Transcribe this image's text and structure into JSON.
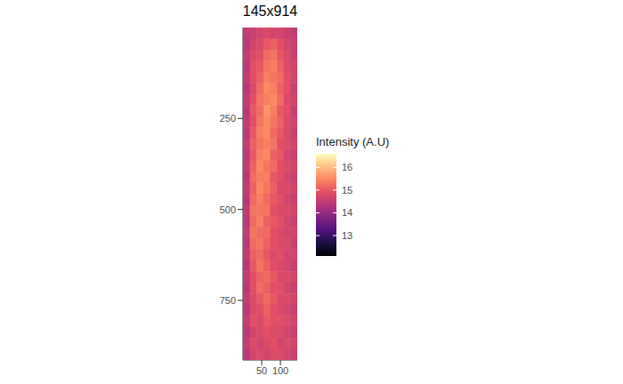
{
  "chart_data": {
    "type": "heatmap",
    "title": "145x914",
    "xlim": [
      0,
      145
    ],
    "xticks": [
      50,
      100
    ],
    "ylim": [
      0,
      914
    ],
    "yticks": [
      250,
      500,
      750
    ],
    "x_edges": [
      0,
      18.1,
      36.3,
      54.4,
      72.5,
      90.6,
      108.8,
      126.9,
      145
    ],
    "y_edges": [
      0,
      30.5,
      60.9,
      91.4,
      121.9,
      152.3,
      182.8,
      213.3,
      243.7,
      274.2,
      304.7,
      335.1,
      365.6,
      396.1,
      426.5,
      457,
      487.5,
      517.9,
      548.4,
      578.9,
      609.3,
      639.8,
      670.3,
      700.7,
      731.2,
      761.7,
      792.1,
      822.6,
      853.1,
      883.5,
      914
    ],
    "cells": [
      [
        14.5,
        14.6,
        14.7,
        14.8,
        14.7,
        14.7,
        14.6,
        14.5
      ],
      [
        14.4,
        14.7,
        14.8,
        15.0,
        15.1,
        14.9,
        14.7,
        14.6
      ],
      [
        14.5,
        14.8,
        14.9,
        15.2,
        15.3,
        15.0,
        14.8,
        14.6
      ],
      [
        14.4,
        14.9,
        15.0,
        15.3,
        15.4,
        15.1,
        14.8,
        14.7
      ],
      [
        14.5,
        14.9,
        15.1,
        15.4,
        15.3,
        15.2,
        14.9,
        14.7
      ],
      [
        14.4,
        14.8,
        15.2,
        15.5,
        15.4,
        15.1,
        14.9,
        14.6
      ],
      [
        14.5,
        14.9,
        15.3,
        15.4,
        15.5,
        15.2,
        14.8,
        14.7
      ],
      [
        14.4,
        15.0,
        15.2,
        15.6,
        15.4,
        15.0,
        14.9,
        14.6
      ],
      [
        14.5,
        14.9,
        15.3,
        15.5,
        15.3,
        15.1,
        14.8,
        14.7
      ],
      [
        14.4,
        15.0,
        15.4,
        15.5,
        15.2,
        15.0,
        14.8,
        14.6
      ],
      [
        14.5,
        15.1,
        15.3,
        15.4,
        15.3,
        14.9,
        14.8,
        14.7
      ],
      [
        14.4,
        15.0,
        15.4,
        15.5,
        15.1,
        15.0,
        14.7,
        14.6
      ],
      [
        14.5,
        15.1,
        15.5,
        15.3,
        15.2,
        14.9,
        14.8,
        14.7
      ],
      [
        14.4,
        15.2,
        15.4,
        15.4,
        15.0,
        14.9,
        14.7,
        14.6
      ],
      [
        14.5,
        15.1,
        15.5,
        15.3,
        15.1,
        14.8,
        14.8,
        14.7
      ],
      [
        14.4,
        15.2,
        15.4,
        15.2,
        15.0,
        14.9,
        14.7,
        14.6
      ],
      [
        14.5,
        15.3,
        15.3,
        15.3,
        14.9,
        14.8,
        14.8,
        14.7
      ],
      [
        14.4,
        15.2,
        15.4,
        15.1,
        15.0,
        14.9,
        14.7,
        14.6
      ],
      [
        14.5,
        15.3,
        15.2,
        15.2,
        14.9,
        14.8,
        14.7,
        14.7
      ],
      [
        14.4,
        15.2,
        15.3,
        15.1,
        14.9,
        14.8,
        14.8,
        14.6
      ],
      [
        14.5,
        15.1,
        15.2,
        15.0,
        14.8,
        14.9,
        14.7,
        14.7
      ],
      [
        14.4,
        15.0,
        15.3,
        15.1,
        14.9,
        14.8,
        14.7,
        14.6
      ],
      [
        14.5,
        14.9,
        15.1,
        15.2,
        15.0,
        14.8,
        14.8,
        14.7
      ],
      [
        14.4,
        14.9,
        15.2,
        15.1,
        14.9,
        14.9,
        14.7,
        14.6
      ],
      [
        14.5,
        14.8,
        15.0,
        15.2,
        15.0,
        14.8,
        14.8,
        14.7
      ],
      [
        14.4,
        14.8,
        14.9,
        15.1,
        14.9,
        14.8,
        14.7,
        14.6
      ],
      [
        14.5,
        14.9,
        14.8,
        15.0,
        14.9,
        14.9,
        14.8,
        14.7
      ],
      [
        14.4,
        14.7,
        14.8,
        14.9,
        14.8,
        14.8,
        14.7,
        14.6
      ],
      [
        14.5,
        14.8,
        14.7,
        14.8,
        14.9,
        14.7,
        14.8,
        14.7
      ],
      [
        14.4,
        14.7,
        14.8,
        14.7,
        14.8,
        14.8,
        14.7,
        14.6
      ]
    ],
    "colorbar": {
      "title": "Intensity (A.U)",
      "range": [
        12.1,
        16.6
      ],
      "ticks": [
        13,
        14,
        15,
        16
      ]
    }
  }
}
